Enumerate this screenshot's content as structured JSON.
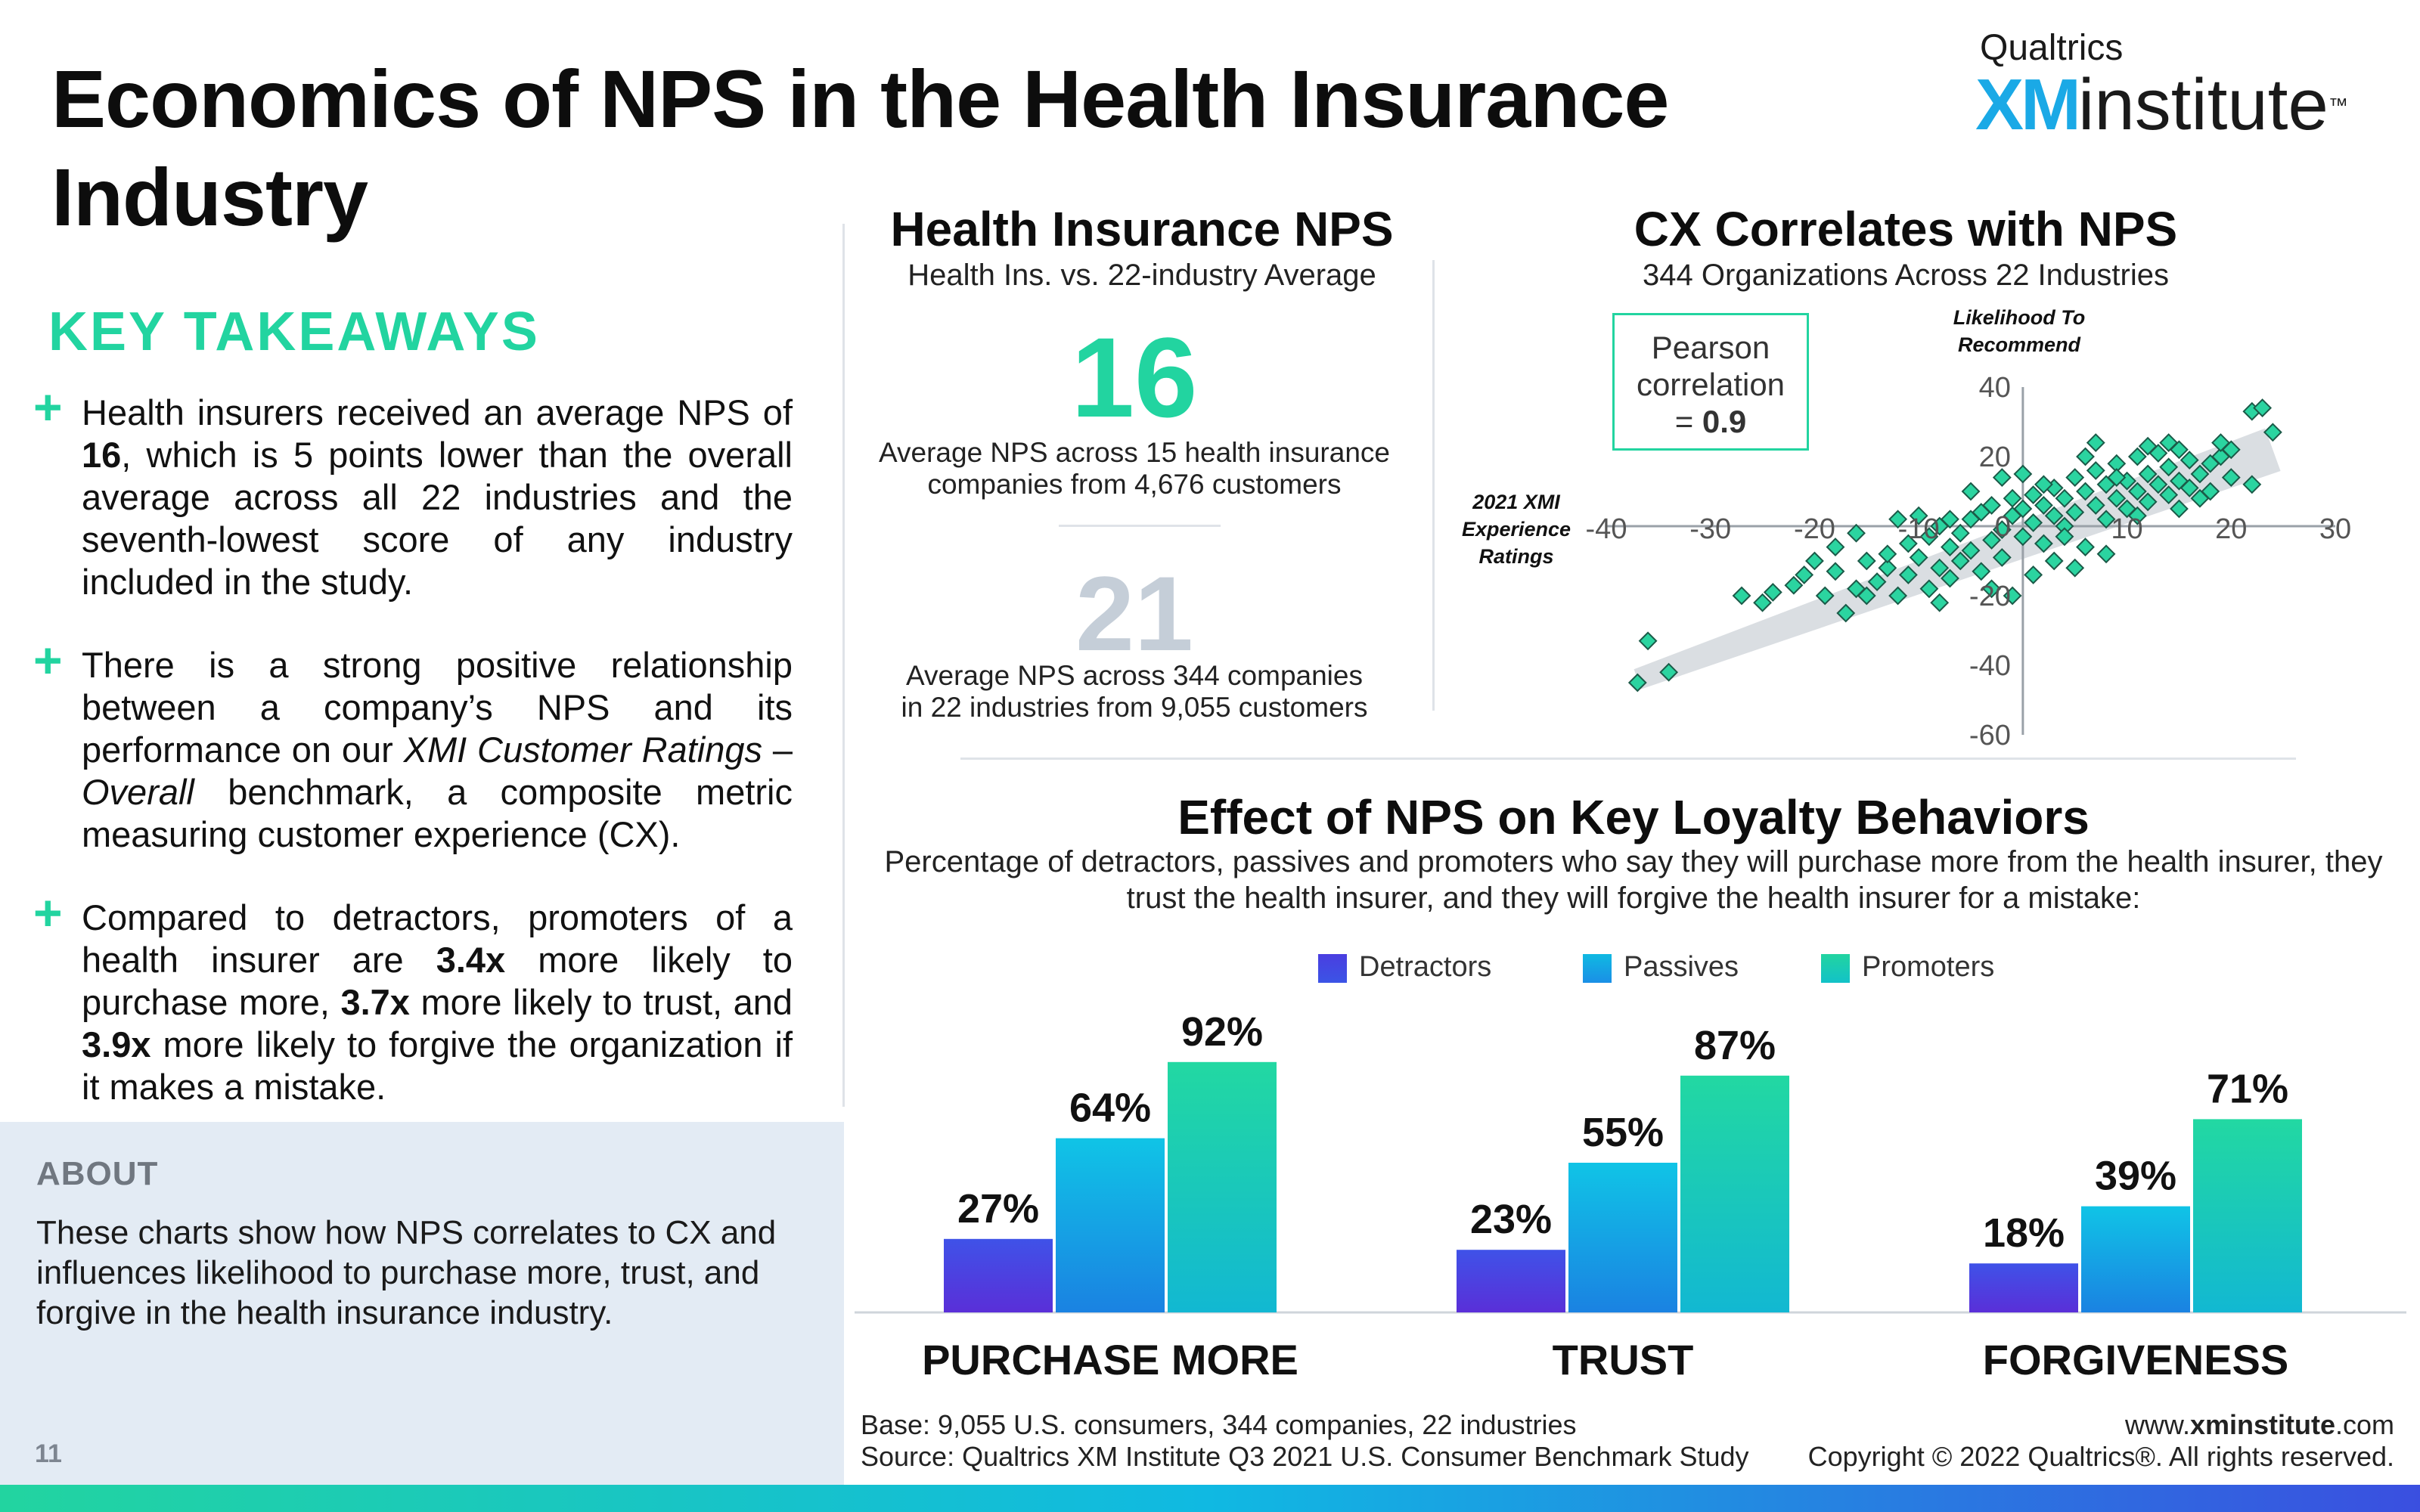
{
  "title": "Economics of NPS in the Health Insurance Industry",
  "brand": {
    "top": "Qualtrics",
    "xm": "XM",
    "name": "institute",
    "tm": "™"
  },
  "takeaways": {
    "heading": "KEY TAKEAWAYS",
    "items": [
      {
        "before": "Health insurers received an average NPS of ",
        "bold": "16",
        "after": ", which is 5 points lower than the overall average across all 22 industries and the seventh-lowest score of any industry included in the study."
      },
      {
        "before": "There is a strong positive relationship between a company’s NPS and its performance on our ",
        "italic1": "XMI Customer Ratings",
        "mid": " – ",
        "italic2": "Overall",
        "after": " benchmark, a composite metric measuring customer experience (CX)."
      },
      {
        "p1": "Compared to detractors, promoters of a health insurer are ",
        "b1": "3.4x",
        "p2": " more likely to purchase more, ",
        "b2": "3.7x",
        "p3": " more likely to trust, and ",
        "b3": "3.9x",
        "p4": " more likely to forgive the organization if it makes a mistake."
      }
    ]
  },
  "about": {
    "heading": "ABOUT",
    "text": "These charts show how NPS correlates to CX and influences likelihood to purchase more, trust, and forgive in the health insurance industry."
  },
  "page_number": "11",
  "nps_panel": {
    "title": "Health Insurance NPS",
    "subtitle": "Health Ins. vs. 22-industry Average",
    "health_value": "16",
    "health_caption_1": "Average NPS across 15 health insurance",
    "health_caption_2": "companies from 4,676 customers",
    "avg_value": "21",
    "avg_caption_1": "Average NPS across 344 companies",
    "avg_caption_2": "in 22 industries from 9,055 customers"
  },
  "cx_panel": {
    "title": "CX Correlates with NPS",
    "subtitle": "344 Organizations Across 22 Industries",
    "pearson_1": "Pearson",
    "pearson_2": "correlation",
    "pearson_3": "= ",
    "pearson_value": "0.9",
    "y_axis_1": "Likelihood To",
    "y_axis_2": "Recommend",
    "x_axis_1": "2021 XMI",
    "x_axis_2": "Experience",
    "x_axis_3": "Ratings"
  },
  "loyalty": {
    "title": "Effect of NPS on Key Loyalty Behaviors",
    "subtitle": "Percentage of detractors, passives and promoters who say they will purchase more from the health insurer, they trust the health insurer, and they will forgive the health insurer for a mistake:"
  },
  "footer": {
    "base": "Base: 9,055 U.S. consumers, 344 companies, 22 industries",
    "source": "Source: Qualtrics XM Institute Q3 2021 U.S. Consumer Benchmark Study",
    "url_pre": "www.",
    "url_bold": "xminstitute",
    "url_post": ".com",
    "copyright": "Copyright © 2022 Qualtrics®. All rights reserved."
  },
  "colors": {
    "accent": "#22d4a0",
    "detractors": "#4a3ee0",
    "passives": "#10b9e2",
    "promoters": "#22d4a0"
  },
  "chart_data": [
    {
      "type": "scatter",
      "title": "CX Correlates with NPS",
      "subtitle": "344 Organizations Across 22 Industries",
      "xlabel": "2021 XMI Experience Ratings",
      "ylabel": "Likelihood To Recommend",
      "xlim": [
        -40,
        30
      ],
      "ylim": [
        -60,
        40
      ],
      "x_ticks": [
        "-40",
        "-30",
        "-20",
        "-10",
        "0",
        "10",
        "20",
        "30"
      ],
      "y_ticks": [
        "40",
        "20",
        "0",
        "-20",
        "-40",
        "-60"
      ],
      "pearson_r": 0.9,
      "trend_band": [
        [
          -37,
          -44
        ],
        [
          24,
          22
        ]
      ],
      "points": [
        [
          -37,
          -45
        ],
        [
          -36,
          -33
        ],
        [
          -34,
          -42
        ],
        [
          -27,
          -20
        ],
        [
          -25,
          -22
        ],
        [
          -24,
          -19
        ],
        [
          -22,
          -17
        ],
        [
          -21,
          -14
        ],
        [
          -19,
          -20
        ],
        [
          -18,
          -13
        ],
        [
          -17,
          -25
        ],
        [
          -16,
          -18
        ],
        [
          -15,
          -10
        ],
        [
          -14,
          -16
        ],
        [
          -13,
          -12
        ],
        [
          -13,
          -8
        ],
        [
          -12,
          -20
        ],
        [
          -11,
          -5
        ],
        [
          -11,
          -14
        ],
        [
          -10,
          -9
        ],
        [
          -9,
          -18
        ],
        [
          -9,
          -3
        ],
        [
          -8,
          -12
        ],
        [
          -8,
          0
        ],
        [
          -7,
          -6
        ],
        [
          -7,
          -15
        ],
        [
          -6,
          -2
        ],
        [
          -6,
          -10
        ],
        [
          -5,
          2
        ],
        [
          -5,
          -7
        ],
        [
          -4,
          -13
        ],
        [
          -4,
          4
        ],
        [
          -3,
          -4
        ],
        [
          -3,
          6
        ],
        [
          -2,
          -1
        ],
        [
          -2,
          -9
        ],
        [
          -1,
          3
        ],
        [
          -1,
          8
        ],
        [
          0,
          -3
        ],
        [
          0,
          5
        ],
        [
          1,
          1
        ],
        [
          1,
          9
        ],
        [
          2,
          -5
        ],
        [
          2,
          6
        ],
        [
          3,
          3
        ],
        [
          3,
          11
        ],
        [
          4,
          0
        ],
        [
          4,
          8
        ],
        [
          5,
          4
        ],
        [
          5,
          14
        ],
        [
          6,
          -6
        ],
        [
          6,
          10
        ],
        [
          7,
          6
        ],
        [
          7,
          16
        ],
        [
          8,
          2
        ],
        [
          8,
          12
        ],
        [
          9,
          8
        ],
        [
          9,
          18
        ],
        [
          10,
          5
        ],
        [
          10,
          13
        ],
        [
          11,
          10
        ],
        [
          11,
          20
        ],
        [
          12,
          7
        ],
        [
          12,
          15
        ],
        [
          13,
          12
        ],
        [
          13,
          21
        ],
        [
          14,
          9
        ],
        [
          14,
          17
        ],
        [
          15,
          13
        ],
        [
          15,
          22
        ],
        [
          16,
          11
        ],
        [
          16,
          19
        ],
        [
          17,
          15
        ],
        [
          18,
          18
        ],
        [
          18,
          10
        ],
        [
          19,
          20
        ],
        [
          20,
          14
        ],
        [
          22,
          33
        ],
        [
          23,
          34
        ],
        [
          24,
          27
        ],
        [
          22,
          12
        ],
        [
          14,
          24
        ],
        [
          -20,
          -10
        ],
        [
          -15,
          -20
        ],
        [
          5,
          -12
        ],
        [
          -3,
          -18
        ],
        [
          8,
          -8
        ],
        [
          -10,
          3
        ],
        [
          0,
          15
        ],
        [
          3,
          -10
        ],
        [
          -1,
          -20
        ],
        [
          -18,
          -6
        ],
        [
          11,
          3
        ],
        [
          17,
          8
        ],
        [
          19,
          24
        ],
        [
          6,
          20
        ],
        [
          -8,
          -22
        ],
        [
          -12,
          2
        ],
        [
          2,
          12
        ],
        [
          7,
          24
        ],
        [
          12,
          23
        ],
        [
          -5,
          10
        ],
        [
          4,
          -3
        ],
        [
          9,
          14
        ],
        [
          -2,
          14
        ],
        [
          20,
          22
        ],
        [
          -16,
          -2
        ],
        [
          15,
          5
        ],
        [
          1,
          -14
        ],
        [
          -7,
          2
        ]
      ]
    },
    {
      "type": "bar",
      "title": "Effect of NPS on Key Loyalty Behaviors",
      "categories": [
        "PURCHASE MORE",
        "TRUST",
        "FORGIVENESS"
      ],
      "ylim": [
        0,
        100
      ],
      "legend": "top",
      "series": [
        {
          "name": "Detractors",
          "values": [
            27,
            23,
            18
          ],
          "labels": [
            "27%",
            "23%",
            "18%"
          ]
        },
        {
          "name": "Passives",
          "values": [
            64,
            55,
            39
          ],
          "labels": [
            "64%",
            "55%",
            "39%"
          ]
        },
        {
          "name": "Promoters",
          "values": [
            92,
            87,
            71
          ],
          "labels": [
            "92%",
            "87%",
            "71%"
          ]
        }
      ]
    }
  ]
}
